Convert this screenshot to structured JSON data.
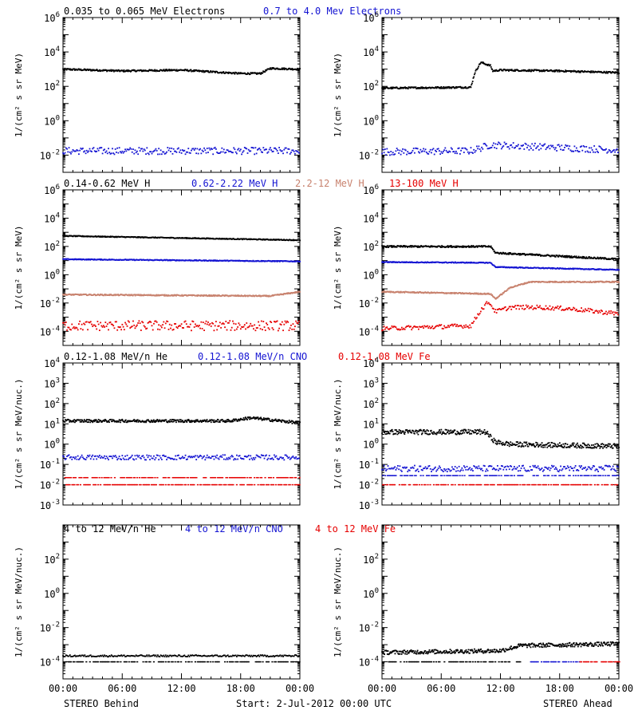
{
  "colors": {
    "black": "#000000",
    "blue": "#1414d2",
    "tan": "#c8826e",
    "red": "#e60000"
  },
  "footer": {
    "left": "STEREO Behind",
    "center": "Start:  2-Jul-2012 00:00 UTC",
    "right": "STEREO Ahead"
  },
  "chart_data": [
    {
      "type": "scatter",
      "title": "",
      "legend": [
        {
          "label": "0.035 to 0.065 MeV Electrons",
          "color": "black"
        },
        {
          "label": "0.7 to 4.0 Mev Electrons",
          "color": "blue"
        }
      ],
      "ylabel": "1/(cm² s sr MeV)",
      "yscale": "log",
      "ylim_exp": [
        -3,
        6
      ],
      "yticks_exp": [
        -2,
        0,
        2,
        4,
        6
      ],
      "xlim_hours": [
        0,
        24
      ],
      "xticks": [
        "00:00",
        "06:00",
        "12:00",
        "18:00",
        "00:00"
      ],
      "panels": [
        {
          "position": "left",
          "series": [
            {
              "color": "black",
              "style": "dense",
              "x": [
                0,
                6,
                12,
                18,
                20,
                21,
                24
              ],
              "log_y": [
                3.0,
                2.9,
                2.95,
                2.75,
                2.75,
                3.05,
                3.0
              ],
              "jitter": 0.05
            },
            {
              "color": "blue",
              "style": "scatter",
              "x": [
                0,
                24
              ],
              "log_y": [
                -1.75,
                -1.75
              ],
              "jitter": 0.2
            }
          ]
        },
        {
          "position": "right",
          "series": [
            {
              "color": "black",
              "style": "dense",
              "x": [
                0,
                9,
                9.4,
                10,
                11,
                11.2,
                12,
                18,
                24
              ],
              "log_y": [
                1.9,
                1.95,
                2.8,
                3.4,
                3.2,
                2.9,
                2.95,
                2.9,
                2.8
              ],
              "jitter": 0.05
            },
            {
              "color": "blue",
              "style": "scatter",
              "x": [
                0,
                9,
                11,
                24
              ],
              "log_y": [
                -1.8,
                -1.75,
                -1.4,
                -1.7
              ],
              "jitter": 0.2
            }
          ]
        }
      ]
    },
    {
      "type": "scatter",
      "title": "",
      "legend": [
        {
          "label": "0.14-0.62 MeV H",
          "color": "black"
        },
        {
          "label": "0.62-2.22 MeV H",
          "color": "blue"
        },
        {
          "label": "2.2-12 MeV H",
          "color": "tan"
        },
        {
          "label": "13-100 MeV H",
          "color": "red"
        }
      ],
      "ylabel": "1/(cm² s sr MeV)",
      "yscale": "log",
      "ylim_exp": [
        -5,
        6
      ],
      "yticks_exp": [
        -4,
        -2,
        0,
        2,
        4,
        6
      ],
      "xlim_hours": [
        0,
        24
      ],
      "xticks": [
        "00:00",
        "06:00",
        "12:00",
        "18:00",
        "00:00"
      ],
      "panels": [
        {
          "position": "left",
          "series": [
            {
              "color": "black",
              "style": "dense",
              "x": [
                0,
                24
              ],
              "log_y": [
                2.75,
                2.45
              ],
              "jitter": 0.03
            },
            {
              "color": "blue",
              "style": "dense",
              "x": [
                0,
                24
              ],
              "log_y": [
                1.1,
                0.95
              ],
              "jitter": 0.03
            },
            {
              "color": "tan",
              "style": "dense",
              "x": [
                0,
                21,
                24
              ],
              "log_y": [
                -1.4,
                -1.5,
                -1.2
              ],
              "jitter": 0.04
            },
            {
              "color": "red",
              "style": "scatter",
              "x": [
                0,
                24
              ],
              "log_y": [
                -3.6,
                -3.6
              ],
              "jitter": 0.35
            }
          ]
        },
        {
          "position": "right",
          "series": [
            {
              "color": "black",
              "style": "dense",
              "x": [
                0,
                11,
                11.5,
                24
              ],
              "log_y": [
                2.0,
                2.0,
                1.55,
                1.1
              ],
              "jitter": 0.06
            },
            {
              "color": "blue",
              "style": "dense",
              "x": [
                0,
                11,
                11.5,
                24
              ],
              "log_y": [
                0.9,
                0.85,
                0.55,
                0.35
              ],
              "jitter": 0.03
            },
            {
              "color": "tan",
              "style": "dense",
              "x": [
                0,
                11,
                11.5,
                13,
                15,
                24
              ],
              "log_y": [
                -1.2,
                -1.35,
                -1.7,
                -0.9,
                -0.5,
                -0.5
              ],
              "jitter": 0.04
            },
            {
              "color": "red",
              "style": "scatter",
              "x": [
                0,
                9,
                10,
                10.8,
                11.5,
                13,
                16,
                19,
                24
              ],
              "log_y": [
                -3.8,
                -3.6,
                -2.5,
                -1.9,
                -2.6,
                -2.3,
                -2.3,
                -2.4,
                -2.75
              ],
              "jitter": 0.15
            }
          ]
        }
      ]
    },
    {
      "type": "scatter",
      "title": "",
      "legend": [
        {
          "label": "0.12-1.08 MeV/n He",
          "color": "black"
        },
        {
          "label": "0.12-1.08 MeV/n CNO",
          "color": "blue"
        },
        {
          "label": "0.12-1.08 MeV Fe",
          "color": "red"
        }
      ],
      "ylabel": "1/(cm² s sr MeV/nuc.)",
      "yscale": "log",
      "ylim_exp": [
        -3,
        4
      ],
      "yticks_exp": [
        -3,
        -2,
        -1,
        0,
        1,
        2,
        3,
        4
      ],
      "xlim_hours": [
        0,
        24
      ],
      "xticks": [
        "00:00",
        "06:00",
        "12:00",
        "18:00",
        "00:00"
      ],
      "panels": [
        {
          "position": "left",
          "series": [
            {
              "color": "black",
              "style": "dense",
              "x": [
                0,
                17,
                19,
                24
              ],
              "log_y": [
                1.15,
                1.15,
                1.3,
                1.05
              ],
              "jitter": 0.07
            },
            {
              "color": "blue",
              "style": "scatter",
              "x": [
                0,
                24
              ],
              "log_y": [
                -0.65,
                -0.65
              ],
              "jitter": 0.12
            },
            {
              "color": "red",
              "style": "dashed",
              "x": [
                0,
                24
              ],
              "log_y": [
                -2.0,
                -2.0
              ],
              "jitter": 0
            },
            {
              "color": "red",
              "style": "dashed",
              "x": [
                0,
                24
              ],
              "log_y": [
                -1.65,
                -1.65
              ],
              "jitter": 0
            }
          ]
        },
        {
          "position": "right",
          "series": [
            {
              "color": "black",
              "style": "dense",
              "x": [
                0,
                10.5,
                11.5,
                13,
                18,
                24
              ],
              "log_y": [
                0.6,
                0.6,
                0.1,
                0.0,
                -0.05,
                -0.1
              ],
              "jitter": 0.12
            },
            {
              "color": "blue",
              "style": "scatter",
              "x": [
                0,
                24
              ],
              "log_y": [
                -1.2,
                -1.2
              ],
              "jitter": 0.15
            },
            {
              "color": "blue",
              "style": "dashed",
              "x": [
                0,
                24
              ],
              "log_y": [
                -1.55,
                -1.55
              ],
              "jitter": 0
            },
            {
              "color": "red",
              "style": "dashed",
              "x": [
                0,
                24
              ],
              "log_y": [
                -2.0,
                -2.0
              ],
              "jitter": 0
            }
          ]
        }
      ]
    },
    {
      "type": "scatter",
      "title": "",
      "legend": [
        {
          "label": "4 to 12 MeV/n He",
          "color": "black"
        },
        {
          "label": "4 to 12 MeV/n CNO",
          "color": "blue"
        },
        {
          "label": "4 to 12 MeV Fe",
          "color": "red"
        }
      ],
      "ylabel": "1/(cm² s sr MeV/nuc.)",
      "yscale": "log",
      "ylim_exp": [
        -5,
        4
      ],
      "yticks_exp": [
        -4,
        -2,
        0,
        2
      ],
      "xlim_hours": [
        0,
        24
      ],
      "xticks": [
        "00:00",
        "06:00",
        "12:00",
        "18:00",
        "00:00"
      ],
      "panels": [
        {
          "position": "left",
          "series": [
            {
              "color": "black",
              "style": "scatter",
              "x": [
                0,
                24
              ],
              "log_y": [
                -3.65,
                -3.65
              ],
              "jitter": 0.05
            },
            {
              "color": "black",
              "style": "dashed",
              "x": [
                0,
                24
              ],
              "log_y": [
                -4.0,
                -4.0
              ],
              "jitter": 0
            }
          ]
        },
        {
          "position": "right",
          "series": [
            {
              "color": "black",
              "style": "dense",
              "x": [
                0,
                12,
                14,
                24
              ],
              "log_y": [
                -3.45,
                -3.35,
                -3.05,
                -2.95
              ],
              "jitter": 0.12
            },
            {
              "color": "black",
              "style": "dashed",
              "x": [
                0,
                14
              ],
              "log_y": [
                -4.0,
                -4.0
              ],
              "jitter": 0
            },
            {
              "color": "blue",
              "style": "dashed",
              "x": [
                15,
                20
              ],
              "log_y": [
                -4.0,
                -4.0
              ],
              "jitter": 0
            },
            {
              "color": "red",
              "style": "dashed",
              "x": [
                20,
                24
              ],
              "log_y": [
                -4.0,
                -4.0
              ],
              "jitter": 0
            }
          ]
        }
      ]
    }
  ]
}
